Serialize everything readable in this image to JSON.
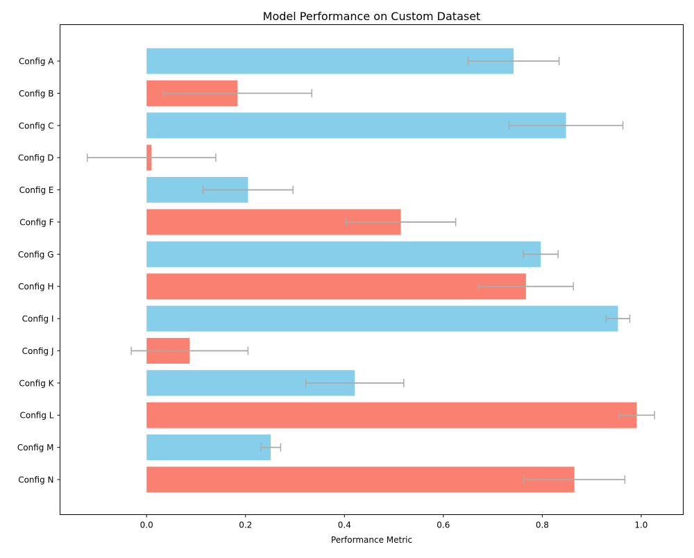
{
  "chart_data": {
    "type": "bar",
    "orientation": "horizontal",
    "title": "Model Performance on Custom Dataset",
    "xlabel": "Performance Metric",
    "ylabel": "",
    "xlim": [
      -0.175,
      1.085
    ],
    "xticks": [
      0.0,
      0.2,
      0.4,
      0.6,
      0.8,
      1.0
    ],
    "xtick_labels": [
      "0.0",
      "0.2",
      "0.4",
      "0.6",
      "0.8",
      "1.0"
    ],
    "grid": false,
    "categories": [
      "Config A",
      "Config B",
      "Config C",
      "Config D",
      "Config E",
      "Config F",
      "Config G",
      "Config H",
      "Config I",
      "Config J",
      "Config K",
      "Config L",
      "Config M",
      "Config N"
    ],
    "values": [
      0.742,
      0.184,
      0.848,
      0.01,
      0.205,
      0.514,
      0.797,
      0.767,
      0.953,
      0.087,
      0.421,
      0.991,
      0.251,
      0.865
    ],
    "errors": [
      0.092,
      0.15,
      0.115,
      0.13,
      0.091,
      0.111,
      0.035,
      0.096,
      0.024,
      0.118,
      0.099,
      0.036,
      0.02,
      0.102
    ],
    "bar_colors": [
      "#87ceeb",
      "#fa8072",
      "#87ceeb",
      "#fa8072",
      "#87ceeb",
      "#fa8072",
      "#87ceeb",
      "#fa8072",
      "#87ceeb",
      "#fa8072",
      "#87ceeb",
      "#fa8072",
      "#87ceeb",
      "#fa8072"
    ],
    "error_color": "#aaaaaa"
  }
}
